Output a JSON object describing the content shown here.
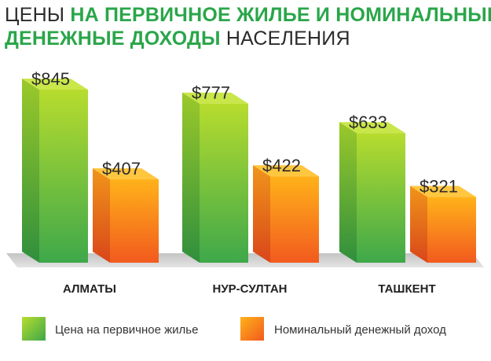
{
  "title": {
    "line1_regular": "ЦЕНЫ ",
    "line1_bold": "НА ПЕРВИЧНОЕ ЖИЛЬЕ И НОМИНАЛЬНЫЕ",
    "line2_bold": "ДЕНЕЖНЫЕ ДОХОДЫ",
    "line2_regular": " НАСЕЛЕНИЯ"
  },
  "colors": {
    "green_light": "#b7dc2e",
    "green_dark": "#3ea84a",
    "orange_light": "#ffb21a",
    "orange_dark": "#f25a1e",
    "title_green": "#2aa64a"
  },
  "chart_data": {
    "type": "bar",
    "title": "ЦЕНЫ НА ПЕРВИЧНОЕ ЖИЛЬЕ И НОМИНАЛЬНЫЕ ДЕНЕЖНЫЕ ДОХОДЫ НАСЕЛЕНИЯ",
    "categories": [
      "АЛМАТЫ",
      "НУР-СУЛТАН",
      "ТАШКЕНТ"
    ],
    "series": [
      {
        "name": "Цена на первичное жилье",
        "values": [
          845,
          777,
          633
        ],
        "labels": [
          "$845",
          "$777",
          "$633"
        ],
        "color": "green"
      },
      {
        "name": "Номинальный денежный доход",
        "values": [
          407,
          422,
          321
        ],
        "labels": [
          "$407",
          "$422",
          "$321"
        ],
        "color": "orange"
      }
    ],
    "xlabel": "",
    "ylabel": "",
    "ylim": [
      0,
      900
    ],
    "legend_position": "bottom"
  }
}
